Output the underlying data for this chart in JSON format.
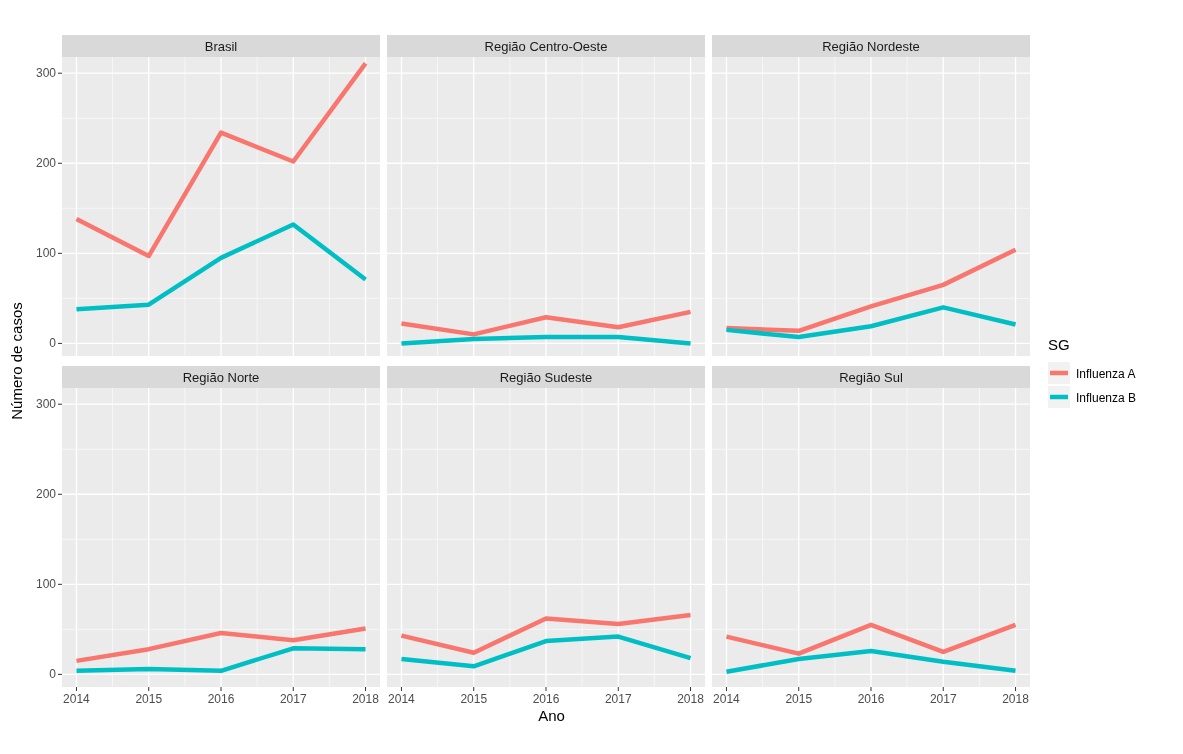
{
  "chart_data": [
    {
      "type": "line",
      "title": "Brasil",
      "x": [
        2014,
        2015,
        2016,
        2017,
        2018
      ],
      "xlim": [
        2013.8,
        2018.2
      ],
      "xticks": [
        2014,
        2015,
        2016,
        2017,
        2018
      ],
      "ylim": [
        -14,
        318
      ],
      "yticks": [
        0,
        100,
        200,
        300
      ],
      "grid": true,
      "tick_labels": "y",
      "series": [
        {
          "color": "#f8766d",
          "values": [
            138,
            97,
            234,
            202,
            311
          ]
        },
        {
          "color": "#00bfc4",
          "values": [
            38,
            43,
            95,
            132,
            71
          ]
        }
      ]
    },
    {
      "type": "line",
      "title": "Região Centro-Oeste",
      "x": [
        2014,
        2015,
        2016,
        2017,
        2018
      ],
      "xlim": [
        2013.8,
        2018.2
      ],
      "xticks": [
        2014,
        2015,
        2016,
        2017,
        2018
      ],
      "ylim": [
        -14,
        318
      ],
      "yticks": [
        0,
        100,
        200,
        300
      ],
      "grid": true,
      "tick_labels": false,
      "series": [
        {
          "color": "#f8766d",
          "values": [
            22,
            10,
            29,
            18,
            35
          ]
        },
        {
          "color": "#00bfc4",
          "values": [
            0,
            5,
            7,
            7,
            0
          ]
        }
      ]
    },
    {
      "type": "line",
      "title": "Região Nordeste",
      "x": [
        2014,
        2015,
        2016,
        2017,
        2018
      ],
      "xlim": [
        2013.8,
        2018.2
      ],
      "xticks": [
        2014,
        2015,
        2016,
        2017,
        2018
      ],
      "ylim": [
        -14,
        318
      ],
      "yticks": [
        0,
        100,
        200,
        300
      ],
      "grid": true,
      "tick_labels": false,
      "legend": "right",
      "legend_title": "SG",
      "series": [
        {
          "name": "Influenza A",
          "color": "#f8766d",
          "values": [
            17,
            14,
            41,
            65,
            104
          ]
        },
        {
          "name": "Influenza B",
          "color": "#00bfc4",
          "values": [
            15,
            7,
            19,
            40,
            21
          ]
        }
      ]
    },
    {
      "type": "line",
      "title": "Região Norte",
      "ylabel": "Número de casos",
      "x": [
        2014,
        2015,
        2016,
        2017,
        2018
      ],
      "xlim": [
        2013.8,
        2018.2
      ],
      "xticks": [
        2014,
        2015,
        2016,
        2017,
        2018
      ],
      "ylim": [
        -14,
        318
      ],
      "yticks": [
        0,
        100,
        200,
        300
      ],
      "grid": true,
      "series": [
        {
          "color": "#f8766d",
          "values": [
            15,
            28,
            46,
            38,
            51
          ]
        },
        {
          "color": "#00bfc4",
          "values": [
            4,
            6,
            4,
            29,
            28
          ]
        }
      ]
    },
    {
      "type": "line",
      "title": "Região Sudeste",
      "xlabel": "Ano",
      "x": [
        2014,
        2015,
        2016,
        2017,
        2018
      ],
      "xlim": [
        2013.8,
        2018.2
      ],
      "xticks": [
        2014,
        2015,
        2016,
        2017,
        2018
      ],
      "ylim": [
        -14,
        318
      ],
      "yticks": [
        0,
        100,
        200,
        300
      ],
      "grid": true,
      "tick_labels": "x",
      "series": [
        {
          "color": "#f8766d",
          "values": [
            43,
            24,
            62,
            56,
            66
          ]
        },
        {
          "color": "#00bfc4",
          "values": [
            17,
            9,
            37,
            42,
            18
          ]
        }
      ]
    },
    {
      "type": "line",
      "title": "Região Sul",
      "x": [
        2014,
        2015,
        2016,
        2017,
        2018
      ],
      "xlim": [
        2013.8,
        2018.2
      ],
      "xticks": [
        2014,
        2015,
        2016,
        2017,
        2018
      ],
      "ylim": [
        -14,
        318
      ],
      "yticks": [
        0,
        100,
        200,
        300
      ],
      "grid": true,
      "tick_labels": "x",
      "series": [
        {
          "color": "#f8766d",
          "values": [
            42,
            23,
            55,
            25,
            55
          ]
        },
        {
          "color": "#00bfc4",
          "values": [
            3,
            17,
            26,
            14,
            4
          ]
        }
      ]
    }
  ]
}
